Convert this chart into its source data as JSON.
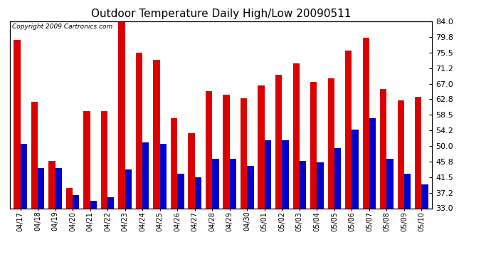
{
  "title": "Outdoor Temperature Daily High/Low 20090511",
  "copyright": "Copyright 2009 Cartronics.com",
  "dates": [
    "04/17",
    "04/18",
    "04/19",
    "04/20",
    "04/21",
    "04/22",
    "04/23",
    "04/24",
    "04/25",
    "04/26",
    "04/27",
    "04/28",
    "04/29",
    "04/30",
    "05/01",
    "05/02",
    "05/03",
    "05/04",
    "05/05",
    "05/06",
    "05/07",
    "05/08",
    "05/09",
    "05/10"
  ],
  "highs": [
    79.0,
    62.0,
    46.0,
    38.5,
    59.5,
    59.5,
    84.0,
    75.5,
    73.5,
    57.5,
    53.5,
    65.0,
    64.0,
    63.0,
    66.5,
    69.5,
    72.5,
    67.5,
    68.5,
    76.0,
    79.5,
    65.5,
    62.5,
    63.5
  ],
  "lows": [
    50.5,
    44.0,
    44.0,
    36.5,
    35.0,
    36.0,
    43.5,
    51.0,
    50.5,
    42.5,
    41.5,
    46.5,
    46.5,
    44.5,
    51.5,
    51.5,
    46.0,
    45.5,
    49.5,
    54.5,
    57.5,
    46.5,
    42.5,
    39.5
  ],
  "high_color": "#dd0000",
  "low_color": "#0000cc",
  "bg_color": "#ffffff",
  "grid_color": "#aaaaaa",
  "ylim_min": 33.0,
  "ylim_max": 84.0,
  "yticks": [
    33.0,
    37.2,
    41.5,
    45.8,
    50.0,
    54.2,
    58.5,
    62.8,
    67.0,
    71.2,
    75.5,
    79.8,
    84.0
  ],
  "bar_width": 0.38
}
